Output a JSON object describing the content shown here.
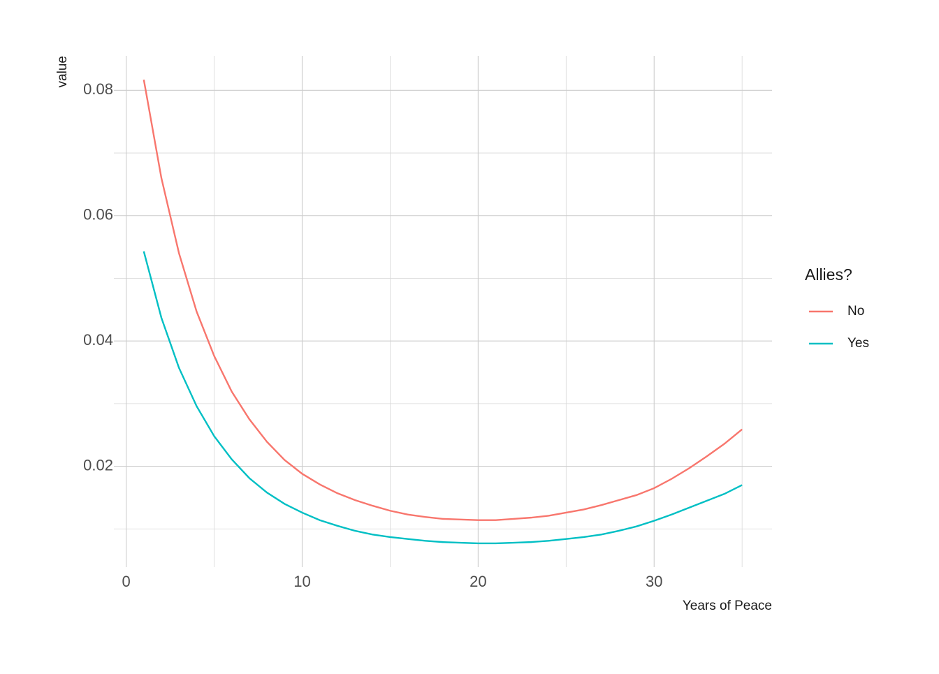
{
  "chart_data": {
    "type": "line",
    "x_label": "Years of Peace",
    "y_label": "value",
    "legend_title": "Allies?",
    "x": [
      1,
      2,
      3,
      4,
      5,
      6,
      7,
      8,
      9,
      10,
      11,
      12,
      13,
      14,
      15,
      16,
      17,
      18,
      19,
      20,
      21,
      22,
      23,
      24,
      25,
      26,
      27,
      28,
      29,
      30,
      31,
      32,
      33,
      34,
      35
    ],
    "series": [
      {
        "name": "No",
        "color": "#f8766d",
        "values": [
          0.0817,
          0.066,
          0.054,
          0.0447,
          0.0376,
          0.0319,
          0.0275,
          0.0239,
          0.021,
          0.0188,
          0.0171,
          0.0157,
          0.0146,
          0.0137,
          0.0129,
          0.0123,
          0.0119,
          0.0116,
          0.0115,
          0.0114,
          0.0114,
          0.0116,
          0.0118,
          0.0121,
          0.0126,
          0.0131,
          0.0138,
          0.0146,
          0.0154,
          0.0165,
          0.018,
          0.0197,
          0.0216,
          0.0236,
          0.0259
        ]
      },
      {
        "name": "Yes",
        "color": "#00bfc4",
        "values": [
          0.0543,
          0.0437,
          0.0357,
          0.0296,
          0.0248,
          0.0211,
          0.0181,
          0.0158,
          0.014,
          0.0126,
          0.0114,
          0.0105,
          0.0097,
          0.0091,
          0.0087,
          0.0084,
          0.0081,
          0.0079,
          0.0078,
          0.0077,
          0.0077,
          0.0078,
          0.0079,
          0.0081,
          0.0084,
          0.0087,
          0.0091,
          0.0097,
          0.0104,
          0.0113,
          0.0123,
          0.0134,
          0.0145,
          0.0156,
          0.017
        ]
      }
    ],
    "xlim": [
      -0.7,
      36.7
    ],
    "ylim": [
      0.0039,
      0.0855
    ],
    "xticks": [
      0,
      10,
      20,
      30
    ],
    "yticks": [
      {
        "value": 0.02,
        "label": "0.02"
      },
      {
        "value": 0.04,
        "label": "0.04"
      },
      {
        "value": 0.06,
        "label": "0.06"
      },
      {
        "value": 0.08,
        "label": "0.08"
      }
    ],
    "x_minor_grid": [
      5,
      15,
      25,
      35
    ],
    "y_minor_grid": [
      0.01,
      0.03,
      0.05,
      0.07
    ],
    "grid": true,
    "legend": "right"
  }
}
